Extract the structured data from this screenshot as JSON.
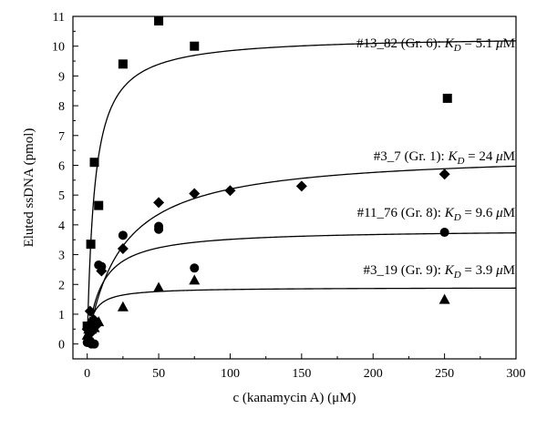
{
  "chart_data": {
    "type": "scatter",
    "xlabel": "c (kanamycin A) (μM)",
    "ylabel": "Eluted ssDNA  (pmol)",
    "xlim": [
      -10,
      300
    ],
    "ylim": [
      -0.5,
      11
    ],
    "xticks": [
      0,
      50,
      100,
      150,
      200,
      250,
      300
    ],
    "yticks": [
      0,
      1,
      2,
      3,
      4,
      5,
      6,
      7,
      8,
      9,
      10,
      11
    ],
    "grid": false,
    "legend": "none",
    "series": [
      {
        "marker": "square",
        "bmax": 10.35,
        "kd": 5.1,
        "annotation": "#13_82 (Gr. 6): K_D = 5.1 μM",
        "points": [
          [
            0,
            0.6
          ],
          [
            2.5,
            3.35
          ],
          [
            5,
            6.1
          ],
          [
            8,
            4.65
          ],
          [
            25,
            9.4
          ],
          [
            50,
            10.85
          ],
          [
            75,
            10.0
          ],
          [
            252,
            8.25
          ]
        ]
      },
      {
        "marker": "diamond",
        "bmax": 6.45,
        "kd": 24,
        "annotation": "#3_7 (Gr. 1): K_D = 24 μM",
        "points": [
          [
            0,
            0.5
          ],
          [
            1,
            0.6
          ],
          [
            2,
            1.1
          ],
          [
            3,
            0.4
          ],
          [
            5,
            0.8
          ],
          [
            7,
            0.65
          ],
          [
            10,
            2.45
          ],
          [
            25,
            3.2
          ],
          [
            50,
            4.75
          ],
          [
            75,
            5.05
          ],
          [
            100,
            5.15
          ],
          [
            150,
            5.3
          ],
          [
            250,
            5.7
          ]
        ]
      },
      {
        "marker": "circle",
        "bmax": 3.85,
        "kd": 9.6,
        "annotation": "#11_76 (Gr. 8): K_D = 9.6 μM",
        "points": [
          [
            0,
            0.05
          ],
          [
            1,
            0.05
          ],
          [
            2,
            0.1
          ],
          [
            3,
            0.0
          ],
          [
            5,
            0.0
          ],
          [
            8,
            2.65
          ],
          [
            10,
            2.6
          ],
          [
            25,
            3.65
          ],
          [
            50,
            3.95
          ],
          [
            50,
            3.85
          ],
          [
            75,
            2.55
          ],
          [
            250,
            3.75
          ]
        ]
      },
      {
        "marker": "triangle",
        "bmax": 1.9,
        "kd": 3.9,
        "annotation": "#3_19 (Gr. 9): K_D = 3.9 μM",
        "points": [
          [
            0,
            0.3
          ],
          [
            1,
            0.5
          ],
          [
            2,
            0.75
          ],
          [
            3,
            0.5
          ],
          [
            5,
            0.55
          ],
          [
            8,
            0.75
          ],
          [
            25,
            1.25
          ],
          [
            50,
            1.9
          ],
          [
            75,
            2.15
          ],
          [
            250,
            1.5
          ]
        ]
      }
    ]
  }
}
